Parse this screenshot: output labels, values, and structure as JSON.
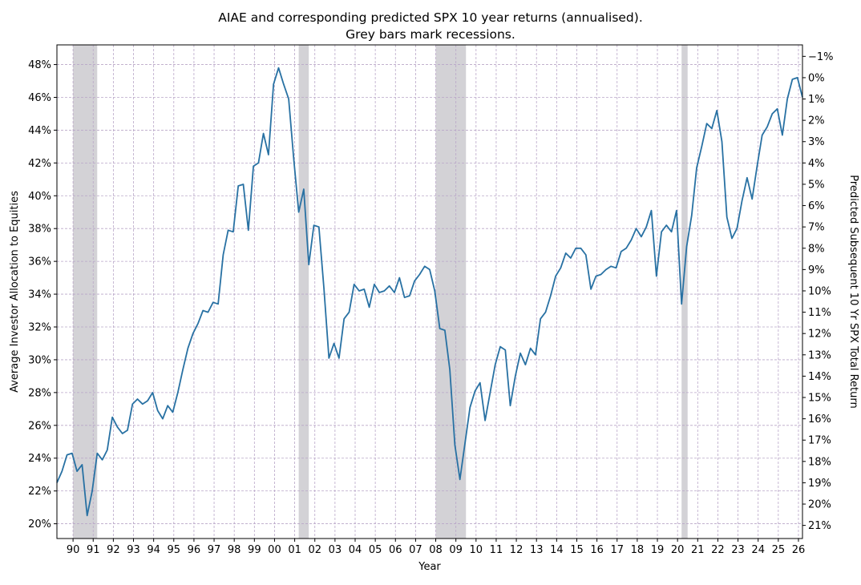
{
  "chart_data": {
    "type": "line",
    "title": "AIAE and corresponding predicted SPX 10 year returns (annualised).",
    "subtitle": "Grey bars mark recessions.",
    "xlabel": "Year",
    "ylabel": "Average Investor Allocation to Equities",
    "ylabel_right": "Predicted Subsequent 10 Yr SPX Total Return",
    "xlim": [
      1989.2,
      2026.2
    ],
    "ylim": [
      19.1,
      49.2
    ],
    "grid": true,
    "colors": {
      "line": "#2871a3",
      "recession": "#d3d2d6",
      "grid": "#b9a6c8"
    },
    "x_ticks": [
      {
        "value": 1990,
        "label": "90"
      },
      {
        "value": 1991,
        "label": "91"
      },
      {
        "value": 1992,
        "label": "92"
      },
      {
        "value": 1993,
        "label": "93"
      },
      {
        "value": 1994,
        "label": "94"
      },
      {
        "value": 1995,
        "label": "95"
      },
      {
        "value": 1996,
        "label": "96"
      },
      {
        "value": 1997,
        "label": "97"
      },
      {
        "value": 1998,
        "label": "98"
      },
      {
        "value": 1999,
        "label": "99"
      },
      {
        "value": 2000,
        "label": "00"
      },
      {
        "value": 2001,
        "label": "01"
      },
      {
        "value": 2002,
        "label": "02"
      },
      {
        "value": 2003,
        "label": "03"
      },
      {
        "value": 2004,
        "label": "04"
      },
      {
        "value": 2005,
        "label": "05"
      },
      {
        "value": 2006,
        "label": "06"
      },
      {
        "value": 2007,
        "label": "07"
      },
      {
        "value": 2008,
        "label": "08"
      },
      {
        "value": 2009,
        "label": "09"
      },
      {
        "value": 2010,
        "label": "10"
      },
      {
        "value": 2011,
        "label": "11"
      },
      {
        "value": 2012,
        "label": "12"
      },
      {
        "value": 2013,
        "label": "13"
      },
      {
        "value": 2014,
        "label": "14"
      },
      {
        "value": 2015,
        "label": "15"
      },
      {
        "value": 2016,
        "label": "16"
      },
      {
        "value": 2017,
        "label": "17"
      },
      {
        "value": 2018,
        "label": "18"
      },
      {
        "value": 2019,
        "label": "19"
      },
      {
        "value": 2020,
        "label": "20"
      },
      {
        "value": 2021,
        "label": "21"
      },
      {
        "value": 2022,
        "label": "22"
      },
      {
        "value": 2023,
        "label": "23"
      },
      {
        "value": 2024,
        "label": "24"
      },
      {
        "value": 2025,
        "label": "25"
      },
      {
        "value": 2026,
        "label": "26"
      }
    ],
    "y_ticks": [
      {
        "value": 20,
        "label": "20%"
      },
      {
        "value": 22,
        "label": "22%"
      },
      {
        "value": 24,
        "label": "24%"
      },
      {
        "value": 26,
        "label": "26%"
      },
      {
        "value": 28,
        "label": "28%"
      },
      {
        "value": 30,
        "label": "30%"
      },
      {
        "value": 32,
        "label": "32%"
      },
      {
        "value": 34,
        "label": "34%"
      },
      {
        "value": 36,
        "label": "36%"
      },
      {
        "value": 38,
        "label": "38%"
      },
      {
        "value": 40,
        "label": "40%"
      },
      {
        "value": 42,
        "label": "42%"
      },
      {
        "value": 44,
        "label": "44%"
      },
      {
        "value": 46,
        "label": "46%"
      },
      {
        "value": 48,
        "label": "48%"
      }
    ],
    "y_ticks_right": [
      {
        "value": 48.5,
        "label": "−1%"
      },
      {
        "value": 47.2,
        "label": "0%"
      },
      {
        "value": 45.9,
        "label": "1%"
      },
      {
        "value": 44.6,
        "label": "2%"
      },
      {
        "value": 43.3,
        "label": "3%"
      },
      {
        "value": 42.0,
        "label": "4%"
      },
      {
        "value": 40.7,
        "label": "5%"
      },
      {
        "value": 39.4,
        "label": "6%"
      },
      {
        "value": 38.1,
        "label": "7%"
      },
      {
        "value": 36.8,
        "label": "8%"
      },
      {
        "value": 35.5,
        "label": "9%"
      },
      {
        "value": 34.2,
        "label": "10%"
      },
      {
        "value": 32.9,
        "label": "11%"
      },
      {
        "value": 31.6,
        "label": "12%"
      },
      {
        "value": 30.3,
        "label": "13%"
      },
      {
        "value": 29.0,
        "label": "14%"
      },
      {
        "value": 27.7,
        "label": "15%"
      },
      {
        "value": 26.4,
        "label": "16%"
      },
      {
        "value": 25.1,
        "label": "17%"
      },
      {
        "value": 23.8,
        "label": "18%"
      },
      {
        "value": 22.5,
        "label": "19%"
      },
      {
        "value": 21.2,
        "label": "20%"
      },
      {
        "value": 19.9,
        "label": "21%"
      }
    ],
    "recessions": [
      {
        "start": 1990.0,
        "end": 1991.2
      },
      {
        "start": 2001.2,
        "end": 2001.7
      },
      {
        "start": 2008.0,
        "end": 2009.5
      },
      {
        "start": 2020.2,
        "end": 2020.5
      }
    ],
    "series": [
      {
        "values": [
          [
            1989.2,
            22.5
          ],
          [
            1989.45,
            23.2
          ],
          [
            1989.7,
            24.2
          ],
          [
            1989.95,
            24.3
          ],
          [
            1990.2,
            23.2
          ],
          [
            1990.45,
            23.6
          ],
          [
            1990.7,
            20.5
          ],
          [
            1990.95,
            22.0
          ],
          [
            1991.2,
            24.3
          ],
          [
            1991.45,
            23.9
          ],
          [
            1991.7,
            24.5
          ],
          [
            1991.95,
            26.5
          ],
          [
            1992.2,
            25.9
          ],
          [
            1992.45,
            25.5
          ],
          [
            1992.7,
            25.7
          ],
          [
            1992.95,
            27.3
          ],
          [
            1993.2,
            27.6
          ],
          [
            1993.45,
            27.3
          ],
          [
            1993.7,
            27.5
          ],
          [
            1993.95,
            28.0
          ],
          [
            1994.2,
            26.9
          ],
          [
            1994.45,
            26.4
          ],
          [
            1994.7,
            27.2
          ],
          [
            1994.95,
            26.8
          ],
          [
            1995.2,
            28.0
          ],
          [
            1995.45,
            29.4
          ],
          [
            1995.7,
            30.7
          ],
          [
            1995.95,
            31.6
          ],
          [
            1996.2,
            32.2
          ],
          [
            1996.45,
            33.0
          ],
          [
            1996.7,
            32.9
          ],
          [
            1996.95,
            33.5
          ],
          [
            1997.2,
            33.4
          ],
          [
            1997.45,
            36.4
          ],
          [
            1997.7,
            37.9
          ],
          [
            1997.95,
            37.8
          ],
          [
            1998.2,
            40.6
          ],
          [
            1998.45,
            40.7
          ],
          [
            1998.7,
            37.9
          ],
          [
            1998.95,
            41.8
          ],
          [
            1999.2,
            42.0
          ],
          [
            1999.45,
            43.8
          ],
          [
            1999.7,
            42.5
          ],
          [
            1999.95,
            46.8
          ],
          [
            2000.2,
            47.8
          ],
          [
            2000.45,
            46.8
          ],
          [
            2000.7,
            45.9
          ],
          [
            2000.95,
            42.3
          ],
          [
            2001.2,
            39.0
          ],
          [
            2001.45,
            40.4
          ],
          [
            2001.7,
            35.8
          ],
          [
            2001.95,
            38.2
          ],
          [
            2002.2,
            38.1
          ],
          [
            2002.45,
            34.4
          ],
          [
            2002.7,
            30.1
          ],
          [
            2002.95,
            31.0
          ],
          [
            2003.2,
            30.1
          ],
          [
            2003.45,
            32.5
          ],
          [
            2003.7,
            32.9
          ],
          [
            2003.95,
            34.6
          ],
          [
            2004.2,
            34.2
          ],
          [
            2004.45,
            34.3
          ],
          [
            2004.7,
            33.2
          ],
          [
            2004.95,
            34.6
          ],
          [
            2005.2,
            34.1
          ],
          [
            2005.45,
            34.2
          ],
          [
            2005.7,
            34.5
          ],
          [
            2005.95,
            34.1
          ],
          [
            2006.2,
            35.0
          ],
          [
            2006.45,
            33.8
          ],
          [
            2006.7,
            33.9
          ],
          [
            2006.95,
            34.8
          ],
          [
            2007.2,
            35.2
          ],
          [
            2007.45,
            35.7
          ],
          [
            2007.7,
            35.5
          ],
          [
            2007.95,
            34.2
          ],
          [
            2008.2,
            31.9
          ],
          [
            2008.45,
            31.8
          ],
          [
            2008.7,
            29.4
          ],
          [
            2008.95,
            24.8
          ],
          [
            2009.2,
            22.7
          ],
          [
            2009.45,
            24.9
          ],
          [
            2009.7,
            27.1
          ],
          [
            2009.95,
            28.1
          ],
          [
            2010.2,
            28.6
          ],
          [
            2010.45,
            26.3
          ],
          [
            2010.7,
            28.0
          ],
          [
            2010.95,
            29.7
          ],
          [
            2011.2,
            30.8
          ],
          [
            2011.45,
            30.6
          ],
          [
            2011.7,
            27.2
          ],
          [
            2011.95,
            29.0
          ],
          [
            2012.2,
            30.4
          ],
          [
            2012.45,
            29.7
          ],
          [
            2012.7,
            30.7
          ],
          [
            2012.95,
            30.3
          ],
          [
            2013.2,
            32.5
          ],
          [
            2013.45,
            32.9
          ],
          [
            2013.7,
            33.9
          ],
          [
            2013.95,
            35.1
          ],
          [
            2014.2,
            35.6
          ],
          [
            2014.45,
            36.5
          ],
          [
            2014.7,
            36.2
          ],
          [
            2014.95,
            36.8
          ],
          [
            2015.2,
            36.8
          ],
          [
            2015.45,
            36.4
          ],
          [
            2015.7,
            34.3
          ],
          [
            2015.95,
            35.1
          ],
          [
            2016.2,
            35.2
          ],
          [
            2016.45,
            35.5
          ],
          [
            2016.7,
            35.7
          ],
          [
            2016.95,
            35.6
          ],
          [
            2017.2,
            36.6
          ],
          [
            2017.45,
            36.8
          ],
          [
            2017.7,
            37.3
          ],
          [
            2017.95,
            38.0
          ],
          [
            2018.2,
            37.5
          ],
          [
            2018.45,
            38.1
          ],
          [
            2018.7,
            39.1
          ],
          [
            2018.95,
            35.1
          ],
          [
            2019.2,
            37.8
          ],
          [
            2019.45,
            38.2
          ],
          [
            2019.7,
            37.8
          ],
          [
            2019.95,
            39.1
          ],
          [
            2020.2,
            33.4
          ],
          [
            2020.45,
            36.9
          ],
          [
            2020.7,
            38.8
          ],
          [
            2020.95,
            41.7
          ],
          [
            2021.2,
            43.0
          ],
          [
            2021.45,
            44.4
          ],
          [
            2021.7,
            44.1
          ],
          [
            2021.95,
            45.2
          ],
          [
            2022.2,
            43.3
          ],
          [
            2022.45,
            38.7
          ],
          [
            2022.7,
            37.4
          ],
          [
            2022.95,
            38.0
          ],
          [
            2023.2,
            39.7
          ],
          [
            2023.45,
            41.1
          ],
          [
            2023.7,
            39.8
          ],
          [
            2023.95,
            41.8
          ],
          [
            2024.2,
            43.7
          ],
          [
            2024.45,
            44.2
          ],
          [
            2024.7,
            45.0
          ],
          [
            2024.95,
            45.3
          ],
          [
            2025.2,
            43.7
          ],
          [
            2025.45,
            45.9
          ],
          [
            2025.7,
            47.1
          ],
          [
            2025.95,
            47.2
          ],
          [
            2026.2,
            46.0
          ]
        ]
      }
    ]
  }
}
